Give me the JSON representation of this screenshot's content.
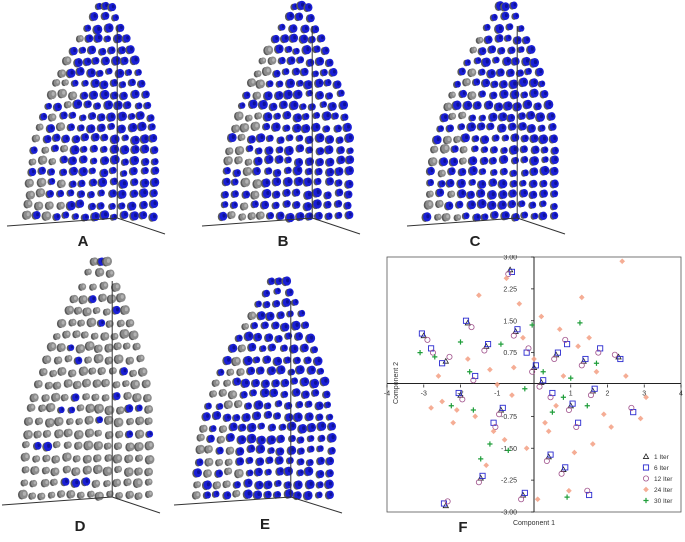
{
  "panels": [
    {
      "label": "A",
      "variant": "blue"
    },
    {
      "label": "B",
      "variant": "blue"
    },
    {
      "label": "C",
      "variant": "blue"
    },
    {
      "label": "D",
      "variant": "grey"
    },
    {
      "label": "E",
      "variant": "blue"
    }
  ],
  "scatter_label": "F",
  "colors": {
    "cone_blue": "#1a1fd6",
    "cone_dark": "#0a0f8a",
    "cone_grey": "#8c8c8c",
    "axis": "#222222"
  },
  "chart_data": {
    "type": "scatter",
    "xlabel": "Component 1",
    "ylabel": "Component 2",
    "xlim": [
      -4,
      4
    ],
    "ylim": [
      -3,
      3
    ],
    "xticks": [
      "-4",
      "-3",
      "-2",
      "-1",
      "1",
      "2",
      "3",
      "4"
    ],
    "yticks": [
      "3.00",
      "2.25",
      "1.50",
      "0.75",
      "-0.75",
      "-1.50",
      "-2.25",
      "-3.00"
    ],
    "legend_position": "bottom-right",
    "series": [
      {
        "name": "1 Iter",
        "marker": "triangle",
        "color": "#222222",
        "points": [
          [
            -3.0,
            1.15
          ],
          [
            -2.4,
            0.55
          ],
          [
            -1.8,
            1.45
          ],
          [
            -1.3,
            0.9
          ],
          [
            -0.9,
            -0.6
          ],
          [
            -0.5,
            1.25
          ],
          [
            0.0,
            0.4
          ],
          [
            0.6,
            0.7
          ],
          [
            1.0,
            -0.5
          ],
          [
            1.35,
            0.55
          ],
          [
            1.6,
            -0.15
          ],
          [
            2.3,
            0.65
          ],
          [
            -2.0,
            -0.25
          ],
          [
            -0.3,
            -2.6
          ],
          [
            0.4,
            -1.7
          ],
          [
            -0.65,
            2.7
          ],
          [
            -1.45,
            -2.2
          ],
          [
            0.8,
            -2.0
          ],
          [
            -2.4,
            -2.85
          ],
          [
            0.2,
            0.05
          ]
        ]
      },
      {
        "name": "6 Iter",
        "marker": "square",
        "color": "#2b2bd0",
        "points": [
          [
            -3.05,
            1.2
          ],
          [
            -2.5,
            0.5
          ],
          [
            -1.85,
            1.5
          ],
          [
            -1.25,
            0.95
          ],
          [
            -0.85,
            -0.55
          ],
          [
            -0.45,
            1.3
          ],
          [
            0.05,
            0.45
          ],
          [
            0.65,
            0.75
          ],
          [
            1.05,
            -0.45
          ],
          [
            1.4,
            0.6
          ],
          [
            1.65,
            -0.1
          ],
          [
            2.35,
            0.6
          ],
          [
            -2.05,
            -0.2
          ],
          [
            -0.25,
            -2.55
          ],
          [
            0.45,
            -1.65
          ],
          [
            -0.6,
            2.65
          ],
          [
            -1.4,
            -2.15
          ],
          [
            0.85,
            -1.95
          ],
          [
            -2.45,
            -2.8
          ],
          [
            0.25,
            0.1
          ],
          [
            -1.6,
            0.2
          ],
          [
            0.9,
            0.95
          ],
          [
            1.2,
            -0.9
          ],
          [
            -0.2,
            0.75
          ],
          [
            1.8,
            0.85
          ],
          [
            -1.1,
            -0.9
          ],
          [
            0.5,
            -0.2
          ],
          [
            2.7,
            -0.65
          ],
          [
            -2.8,
            0.85
          ],
          [
            1.5,
            -2.6
          ]
        ]
      },
      {
        "name": "12 Iter",
        "marker": "circle",
        "color": "#a0528c",
        "points": [
          [
            -2.9,
            1.05
          ],
          [
            -2.3,
            0.65
          ],
          [
            -1.7,
            1.35
          ],
          [
            -1.35,
            0.8
          ],
          [
            -0.95,
            -0.7
          ],
          [
            -0.55,
            1.15
          ],
          [
            -0.05,
            0.3
          ],
          [
            0.55,
            0.6
          ],
          [
            0.95,
            -0.6
          ],
          [
            1.3,
            0.45
          ],
          [
            1.55,
            -0.25
          ],
          [
            2.2,
            0.7
          ],
          [
            -1.95,
            -0.35
          ],
          [
            -0.35,
            -2.7
          ],
          [
            0.35,
            -1.8
          ],
          [
            -0.7,
            2.6
          ],
          [
            -1.5,
            -2.3
          ],
          [
            0.75,
            -2.1
          ],
          [
            -2.35,
            -2.75
          ],
          [
            0.15,
            -0.05
          ],
          [
            -1.65,
            0.1
          ],
          [
            0.85,
            1.05
          ],
          [
            1.15,
            -1.0
          ],
          [
            -0.15,
            0.85
          ],
          [
            1.75,
            0.75
          ],
          [
            -1.05,
            -1.0
          ],
          [
            0.45,
            -0.3
          ],
          [
            2.65,
            -0.55
          ],
          [
            -2.75,
            0.75
          ],
          [
            1.45,
            -2.5
          ]
        ]
      },
      {
        "name": "24 Iter",
        "marker": "diamond",
        "color": "#f4a58a",
        "points": [
          [
            -2.6,
            0.2
          ],
          [
            -2.1,
            -0.6
          ],
          [
            -1.5,
            2.1
          ],
          [
            -1.2,
            0.35
          ],
          [
            -0.8,
            -1.3
          ],
          [
            -0.4,
            1.9
          ],
          [
            0.3,
            -0.9
          ],
          [
            0.7,
            1.3
          ],
          [
            1.1,
            -1.6
          ],
          [
            1.5,
            1.1
          ],
          [
            1.9,
            -0.7
          ],
          [
            2.4,
            2.9
          ],
          [
            -1.8,
            0.6
          ],
          [
            -0.2,
            -1.5
          ],
          [
            0.6,
            -0.5
          ],
          [
            -0.75,
            2.5
          ],
          [
            -1.3,
            -1.9
          ],
          [
            0.95,
            -2.5
          ],
          [
            -2.2,
            -0.9
          ],
          [
            0.0,
            0.6
          ],
          [
            -1.0,
            0.0
          ],
          [
            1.3,
            2.05
          ],
          [
            2.9,
            -0.8
          ],
          [
            -0.6,
            -0.25
          ],
          [
            1.7,
            0.3
          ],
          [
            -2.5,
            -0.4
          ],
          [
            0.2,
            1.6
          ],
          [
            2.1,
            -1.0
          ],
          [
            -1.6,
            -0.75
          ],
          [
            0.8,
            0.2
          ],
          [
            1.2,
            0.9
          ],
          [
            -0.3,
            1.1
          ],
          [
            3.05,
            -0.3
          ],
          [
            -1.1,
            -1.1
          ],
          [
            0.4,
            -1.1
          ],
          [
            1.6,
            -1.4
          ],
          [
            -0.55,
            0.4
          ],
          [
            2.5,
            0.2
          ],
          [
            -2.8,
            -0.55
          ],
          [
            0.1,
            -2.7
          ]
        ]
      },
      {
        "name": "30 Iter",
        "marker": "plus",
        "color": "#1f9e3a",
        "points": [
          [
            -3.1,
            0.75
          ],
          [
            -2.7,
            0.65
          ],
          [
            -2.25,
            -0.5
          ],
          [
            -1.75,
            0.3
          ],
          [
            -1.45,
            -1.75
          ],
          [
            -0.9,
            0.95
          ],
          [
            -0.25,
            -0.1
          ],
          [
            0.25,
            0.3
          ],
          [
            0.8,
            -0.3
          ],
          [
            1.25,
            1.45
          ],
          [
            1.7,
            0.5
          ],
          [
            -2.0,
            1.0
          ],
          [
            -0.7,
            -1.55
          ],
          [
            0.5,
            -0.65
          ],
          [
            1.0,
            0.15
          ],
          [
            -1.2,
            -1.4
          ],
          [
            -0.05,
            1.4
          ],
          [
            0.9,
            -2.65
          ],
          [
            -1.65,
            -0.6
          ],
          [
            1.45,
            -0.5
          ]
        ]
      }
    ]
  }
}
